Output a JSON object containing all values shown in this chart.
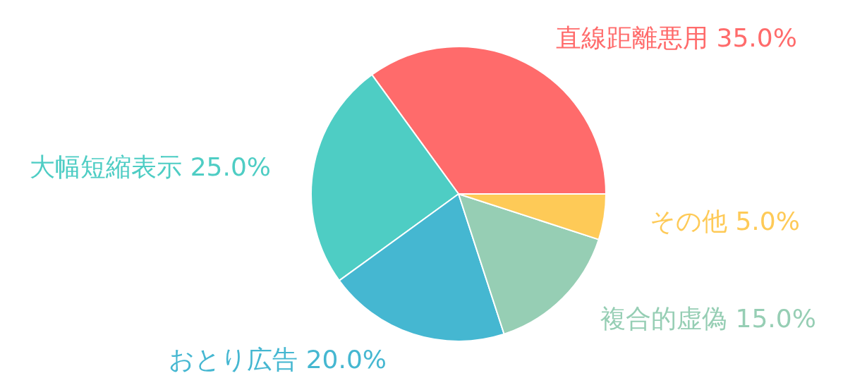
{
  "chart_data": {
    "type": "pie",
    "categories": [
      "直線距離悪用",
      "大幅短縮表示",
      "おとり広告",
      "複合的虚偽",
      "その他"
    ],
    "values": [
      35,
      25,
      20,
      15,
      5
    ],
    "value_labels": [
      "35.0%",
      "25.0%",
      "20.0%",
      "15.0%",
      "5.0%"
    ],
    "colors": [
      "#ff6b6b",
      "#4ecdc4",
      "#45b7d1",
      "#96ceb4",
      "#feca57"
    ],
    "legend": false
  }
}
